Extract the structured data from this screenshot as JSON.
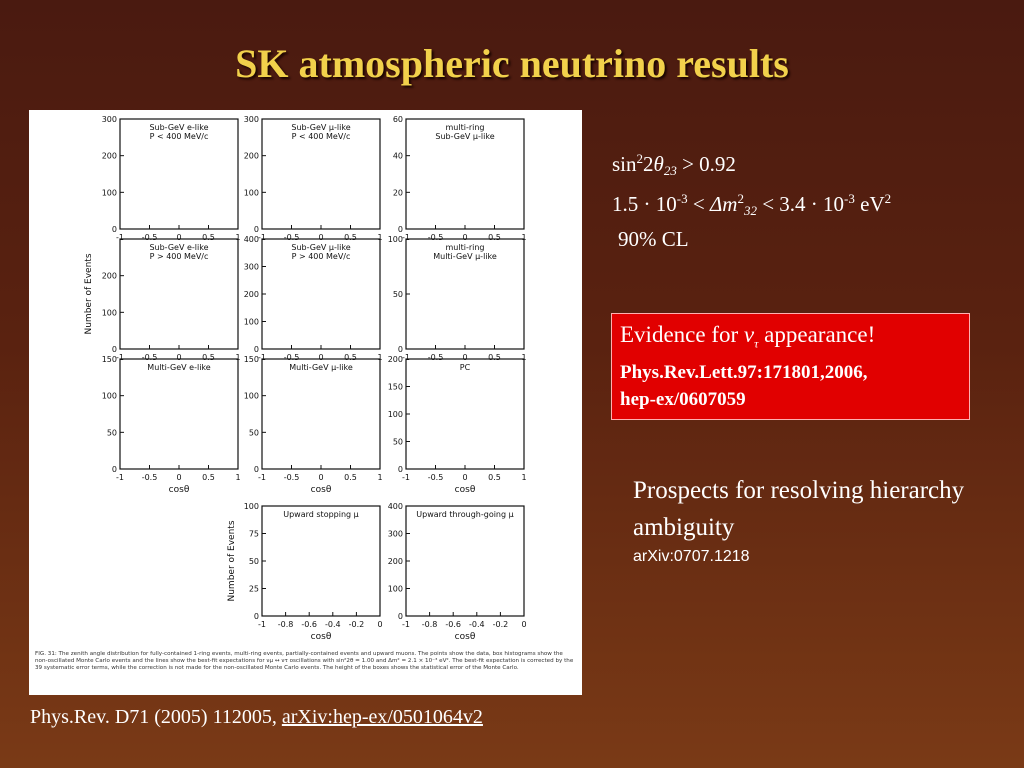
{
  "slide": {
    "title": "SK atmospheric neutrino results"
  },
  "figure": {
    "panels": [
      {
        "title_1": "Sub-GeV e-like",
        "title_2": "P < 400 MeV/c",
        "yticks": [
          "300",
          "200",
          "100",
          "0"
        ],
        "xticks": [
          "-1",
          "-0.5",
          "0",
          "0.5",
          "1"
        ],
        "xlabel": ""
      },
      {
        "title_1": "Sub-GeV μ-like",
        "title_2": "P < 400 MeV/c",
        "yticks": [
          "300",
          "200",
          "100",
          "0"
        ],
        "xticks": [
          "-1",
          "-0.5",
          "0",
          "0.5",
          "1"
        ],
        "xlabel": ""
      },
      {
        "title_1": "multi-ring",
        "title_2": "Sub-GeV μ-like",
        "yticks": [
          "60",
          "40",
          "20",
          "0"
        ],
        "xticks": [
          "-1",
          "-0.5",
          "0",
          "0.5",
          "1"
        ],
        "xlabel": ""
      },
      {
        "title_1": "Sub-GeV e-like",
        "title_2": "P > 400 MeV/c",
        "yticks": [
          "",
          "200",
          "100",
          "0"
        ],
        "xticks": [
          "-1",
          "-0.5",
          "0",
          "0.5",
          "1"
        ],
        "xlabel": ""
      },
      {
        "title_1": "Sub-GeV μ-like",
        "title_2": "P > 400 MeV/c",
        "yticks": [
          "400",
          "300",
          "200",
          "100",
          "0"
        ],
        "xticks": [
          "-1",
          "-0.5",
          "0",
          "0.5",
          "1"
        ],
        "xlabel": ""
      },
      {
        "title_1": "multi-ring",
        "title_2": "Multi-GeV μ-like",
        "yticks": [
          "100",
          "50",
          "0"
        ],
        "xticks": [
          "-1",
          "-0.5",
          "0",
          "0.5",
          "1"
        ],
        "xlabel": ""
      },
      {
        "title_1": "Multi-GeV e-like",
        "title_2": "",
        "yticks": [
          "150",
          "100",
          "50",
          "0"
        ],
        "xticks": [
          "-1",
          "-0.5",
          "0",
          "0.5",
          "1"
        ],
        "xlabel": "cosθ"
      },
      {
        "title_1": "Multi-GeV μ-like",
        "title_2": "",
        "yticks": [
          "150",
          "100",
          "50",
          "0"
        ],
        "xticks": [
          "-1",
          "-0.5",
          "0",
          "0.5",
          "1"
        ],
        "xlabel": "cosθ"
      },
      {
        "title_1": "PC",
        "title_2": "",
        "yticks": [
          "200",
          "150",
          "100",
          "50",
          "0"
        ],
        "xticks": [
          "-1",
          "-0.5",
          "0",
          "0.5",
          "1"
        ],
        "xlabel": "cosθ"
      },
      {
        "title_1": "Upward stopping μ",
        "title_2": "",
        "yticks": [
          "100",
          "75",
          "50",
          "25",
          "0"
        ],
        "xticks": [
          "-1",
          "-0.8",
          "-0.6",
          "-0.4",
          "-0.2",
          "0"
        ],
        "xlabel": "cosθ"
      },
      {
        "title_1": "Upward through-going μ",
        "title_2": "",
        "yticks": [
          "400",
          "300",
          "200",
          "100",
          "0"
        ],
        "xticks": [
          "-1",
          "-0.8",
          "-0.6",
          "-0.4",
          "-0.2",
          "0"
        ],
        "xlabel": "cosθ"
      }
    ],
    "ylabel": "Number of Events",
    "caption": "FIG. 31: The zenith angle distribution for fully-contained 1-ring events, multi-ring events, partially-contained events and upward muons. The points show the data, box histograms show the non-oscillated Monte Carlo events and the lines show the best-fit expectations for νμ ↔ ντ oscillations with sin²2θ = 1.00 and Δm² = 2.1 × 10⁻³ eV². The best-fit expectation is corrected by the 39 systematic error terms, while the correction is not made for the non-oscillated Monte Carlo events. The height of the boxes shows the statistical error of the Monte Carlo."
  },
  "params": {
    "line1_pre": "sin",
    "line1_sup": "2",
    "line1_mid": "2",
    "line1_theta": "θ",
    "line1_sub": "23",
    "line1_post": " > 0.92",
    "line2_a": "1.5 · 10",
    "line2_exp1": "-3",
    "line2_b": " < ",
    "line2_dm": "Δm",
    "line2_sup": "2",
    "line2_sub": "32",
    "line2_c": " < 3.4 · 10",
    "line2_exp2": "-3",
    "line2_d": " eV",
    "line2_exp3": "2",
    "line3": "90% CL"
  },
  "evidence": {
    "pre": "Evidence for ",
    "nu": "ν",
    "tau": "τ",
    "post": " appearance!",
    "ref1": "Phys.Rev.Lett.97:171801,2006,",
    "ref2": "hep-ex/0607059"
  },
  "prospects": {
    "text": "Prospects for resolving hierarchy ambiguity",
    "ref": "arXiv:0707.1218"
  },
  "citation": {
    "text": "Phys.Rev. D71 (2005) 112005, ",
    "link": "arXiv:hep-ex/0501064v2"
  }
}
